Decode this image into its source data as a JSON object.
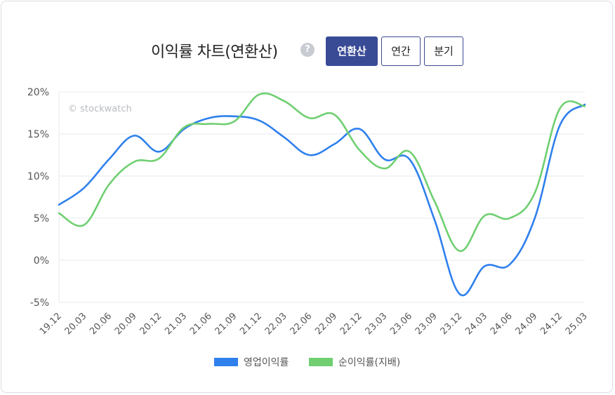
{
  "header": {
    "title": "이익률 차트(연환산)",
    "help_icon": "question-icon",
    "tabs": [
      {
        "label": "연환산",
        "active": true
      },
      {
        "label": "연간",
        "active": false
      },
      {
        "label": "분기",
        "active": false
      }
    ]
  },
  "watermark": "© stockwatch",
  "chart_data": {
    "type": "line",
    "x": [
      "19.12",
      "20.03",
      "20.06",
      "20.09",
      "20.12",
      "21.03",
      "21.06",
      "21.09",
      "21.12",
      "22.03",
      "22.06",
      "22.09",
      "22.12",
      "23.03",
      "23.06",
      "23.09",
      "23.12",
      "24.03",
      "24.06",
      "24.09",
      "24.12",
      "25.03"
    ],
    "y_ticks": [
      "20%",
      "15%",
      "10%",
      "5%",
      "0%",
      "-5%"
    ],
    "ylim": [
      -5,
      20
    ],
    "grid": true,
    "legend_position": "bottom",
    "series": [
      {
        "name": "영업이익률",
        "color": "#2f80ed",
        "values": [
          6.6,
          8.6,
          12.0,
          14.8,
          12.9,
          15.6,
          16.9,
          17.1,
          16.6,
          14.6,
          12.5,
          13.8,
          15.6,
          12.0,
          12.0,
          4.8,
          -4.0,
          -0.7,
          -0.5,
          5.0,
          16.0,
          18.5
        ]
      },
      {
        "name": "순이익률(지배)",
        "color": "#6fcf71",
        "values": [
          5.6,
          4.2,
          9.0,
          11.7,
          12.1,
          15.8,
          16.2,
          16.5,
          19.7,
          18.9,
          16.9,
          17.3,
          13.1,
          10.9,
          12.9,
          7.0,
          1.1,
          5.3,
          5.0,
          8.0,
          18.0,
          18.3
        ]
      }
    ]
  }
}
